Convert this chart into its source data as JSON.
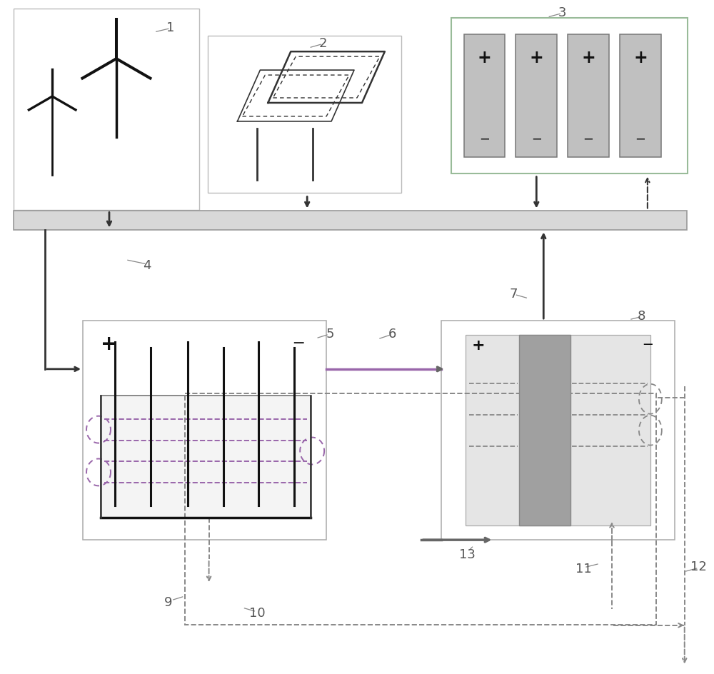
{
  "bg": "#ffffff",
  "black": "#111111",
  "dark": "#333333",
  "mid_gray": "#888888",
  "light_gray": "#aaaaaa",
  "cell_fill": "#c0c0c0",
  "cell_border": "#777777",
  "bus_fill": "#d8d8d8",
  "bus_border": "#999999",
  "inner_fill": "#e5e5e5",
  "membrane_fill": "#a0a0a0",
  "green_border": "#99bb99",
  "purple": "#9966aa",
  "box_lc": "#aaaaaa",
  "labels": [
    "1",
    "2",
    "3",
    "4",
    "5",
    "6",
    "7",
    "8",
    "9",
    "10",
    "11",
    "12",
    "13"
  ]
}
